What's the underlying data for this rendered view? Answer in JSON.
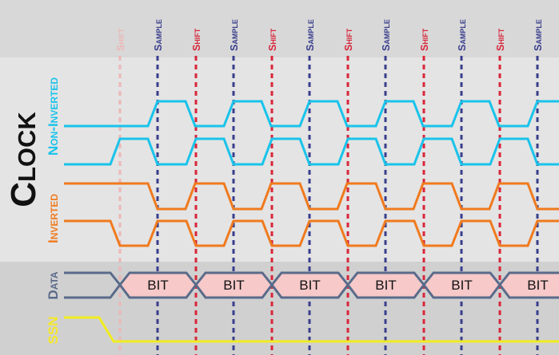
{
  "labels": {
    "clock": "Clock",
    "non_inverted": "Non-Inverted",
    "inverted": "Inverted",
    "data": "Data",
    "ssn": "SSN",
    "shift": "Shift",
    "sample": "Sample",
    "bit": "BIT"
  },
  "colors": {
    "header_band": "#d8d8d8",
    "clock_band": "#e4e4e4",
    "data_band": "#d0d0d0",
    "non_inverted": "#19c3ea",
    "inverted": "#f07a1e",
    "data_line": "#5a6b8a",
    "bit_fill": "#f7c9c9",
    "ssn_line": "#f0ec20",
    "ssn_text": "#f5e82a",
    "shift_marker": "#d8263a",
    "shift_marker_faded": "#ecb6b6",
    "sample_marker": "#3a3e8c",
    "clock_text": "#111111"
  }
}
